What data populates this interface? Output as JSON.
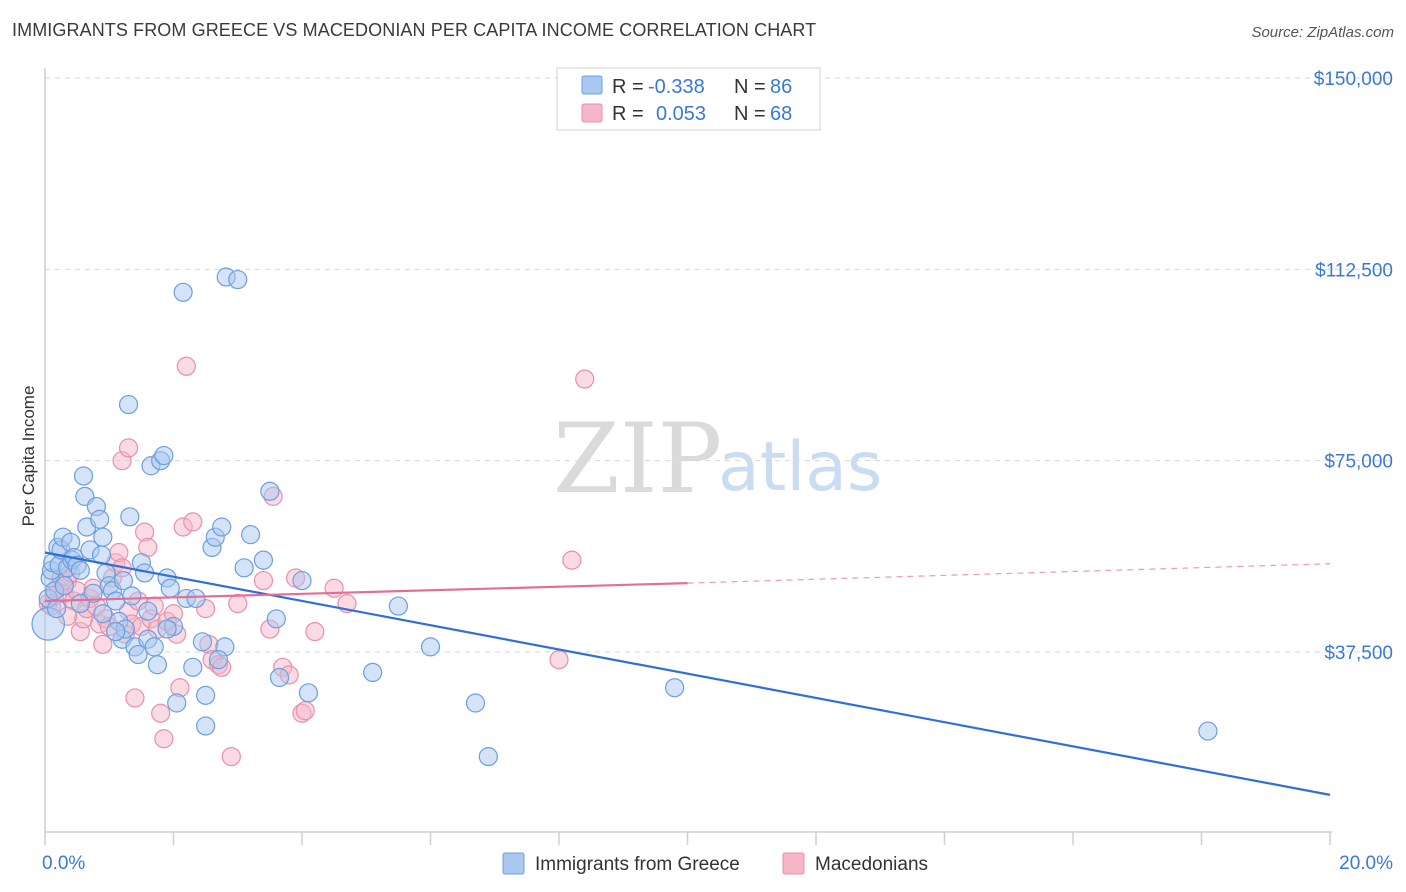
{
  "header": {
    "title": "IMMIGRANTS FROM GREECE VS MACEDONIAN PER CAPITA INCOME CORRELATION CHART",
    "source": "Source: ZipAtlas.com"
  },
  "watermark": {
    "zip": "ZIP",
    "atlas": "atlas"
  },
  "legend": {
    "r_label": "R =",
    "n_label": "N =",
    "rows": [
      {
        "r": "-0.338",
        "n": "86",
        "color": "#a9c8f0"
      },
      {
        "r": "0.053",
        "n": "68",
        "color": "#f5b6c8"
      }
    ]
  },
  "colors": {
    "blue_fill": "#a9c8f0",
    "blue_stroke": "#6b9fe0",
    "blue_line": "#2f6fd6",
    "pink_fill": "#f5b6c8",
    "pink_stroke": "#e88fab",
    "pink_line": "#e46f96",
    "tick_text": "#3a78d4",
    "grid": "#d7d7d7"
  },
  "chart_data": {
    "type": "scatter",
    "title": "IMMIGRANTS FROM GREECE VS MACEDONIAN PER CAPITA INCOME CORRELATION CHART",
    "xlabel": "",
    "ylabel": "Per Capita Income",
    "xlim": [
      0,
      20
    ],
    "ylim": [
      0,
      155000
    ],
    "x_tick_labels": [
      "0.0%",
      "20.0%"
    ],
    "y_ticks": [
      37500,
      75000,
      112500,
      150000
    ],
    "y_tick_labels": [
      "$37,500",
      "$75,000",
      "$112,500",
      "$150,000"
    ],
    "grid": true,
    "legend_position": "top-center",
    "series": [
      {
        "name": "Immigrants from Greece",
        "color": "#a9c8f0",
        "trend": {
          "x": [
            0,
            20
          ],
          "y": [
            57000,
            9500
          ]
        },
        "points": [
          [
            0.05,
            43000,
            1.8
          ],
          [
            0.05,
            48000,
            1
          ],
          [
            0.08,
            52000,
            1
          ],
          [
            0.1,
            53500,
            1
          ],
          [
            0.12,
            55000,
            1
          ],
          [
            0.15,
            49500,
            1
          ],
          [
            0.2,
            58000,
            1
          ],
          [
            0.22,
            54500,
            1
          ],
          [
            0.25,
            57500,
            1
          ],
          [
            0.28,
            60000,
            1
          ],
          [
            0.35,
            54000,
            1
          ],
          [
            0.4,
            59000,
            1
          ],
          [
            0.42,
            55500,
            1
          ],
          [
            0.45,
            56000,
            1
          ],
          [
            0.5,
            54500,
            1
          ],
          [
            0.55,
            53500,
            1
          ],
          [
            0.6,
            72000,
            1
          ],
          [
            0.62,
            68000,
            1
          ],
          [
            0.65,
            62000,
            1
          ],
          [
            0.7,
            57500,
            1
          ],
          [
            0.75,
            49000,
            1
          ],
          [
            0.8,
            66000,
            1
          ],
          [
            0.85,
            63500,
            1
          ],
          [
            0.88,
            56500,
            1
          ],
          [
            0.9,
            60000,
            1
          ],
          [
            0.95,
            53000,
            1
          ],
          [
            1.0,
            50500,
            1
          ],
          [
            1.05,
            49500,
            1
          ],
          [
            1.1,
            47500,
            1
          ],
          [
            1.15,
            43500,
            1
          ],
          [
            1.2,
            40000,
            1
          ],
          [
            1.22,
            51500,
            1
          ],
          [
            1.25,
            42000,
            1
          ],
          [
            1.3,
            86000,
            1
          ],
          [
            1.32,
            64000,
            1
          ],
          [
            1.35,
            48500,
            1
          ],
          [
            1.4,
            38500,
            1
          ],
          [
            1.45,
            37000,
            1
          ],
          [
            1.5,
            55000,
            1
          ],
          [
            1.55,
            53000,
            1
          ],
          [
            1.6,
            40000,
            1
          ],
          [
            1.65,
            74000,
            1
          ],
          [
            1.7,
            38500,
            1
          ],
          [
            1.75,
            35000,
            1
          ],
          [
            1.8,
            75000,
            1
          ],
          [
            1.85,
            76000,
            1
          ],
          [
            1.9,
            52000,
            1
          ],
          [
            1.95,
            50000,
            1
          ],
          [
            2.0,
            42500,
            1
          ],
          [
            2.05,
            27500,
            1
          ],
          [
            2.15,
            108000,
            1
          ],
          [
            2.2,
            48000,
            1
          ],
          [
            2.3,
            34500,
            1
          ],
          [
            2.35,
            48000,
            1
          ],
          [
            2.45,
            39500,
            1
          ],
          [
            2.5,
            29000,
            1
          ],
          [
            2.5,
            23000,
            1
          ],
          [
            2.6,
            58000,
            1
          ],
          [
            2.65,
            60000,
            1
          ],
          [
            2.75,
            62000,
            1
          ],
          [
            2.8,
            38500,
            1
          ],
          [
            2.82,
            111000,
            1
          ],
          [
            3.0,
            110500,
            1
          ],
          [
            3.1,
            54000,
            1
          ],
          [
            3.2,
            60500,
            1
          ],
          [
            3.4,
            55500,
            1
          ],
          [
            3.5,
            69000,
            1
          ],
          [
            3.6,
            44000,
            1
          ],
          [
            3.65,
            32500,
            1
          ],
          [
            4.0,
            51500,
            1
          ],
          [
            4.1,
            29500,
            1
          ],
          [
            5.1,
            33500,
            1
          ],
          [
            5.5,
            46500,
            1
          ],
          [
            6.0,
            38500,
            1
          ],
          [
            6.7,
            27500,
            1
          ],
          [
            6.9,
            17000,
            1
          ],
          [
            9.8,
            30500,
            1
          ],
          [
            18.1,
            22000,
            1
          ],
          [
            0.18,
            46000,
            1
          ],
          [
            0.3,
            50500,
            1
          ],
          [
            0.9,
            45000,
            1
          ],
          [
            1.1,
            41500,
            1
          ],
          [
            1.9,
            42000,
            1
          ],
          [
            2.7,
            36000,
            1
          ],
          [
            0.55,
            47000,
            1
          ],
          [
            1.6,
            45500,
            1
          ]
        ]
      },
      {
        "name": "Macedonians",
        "color": "#f5b6c8",
        "trend": {
          "x": [
            0,
            10
          ],
          "y": [
            47500,
            51000
          ]
        },
        "trend_dashed": {
          "x": [
            10,
            20
          ],
          "y": [
            51000,
            54800
          ]
        },
        "points": [
          [
            0.05,
            47000,
            1
          ],
          [
            0.1,
            46500,
            1
          ],
          [
            0.15,
            48500,
            1
          ],
          [
            0.2,
            50000,
            1
          ],
          [
            0.25,
            52000,
            1
          ],
          [
            0.3,
            49000,
            1
          ],
          [
            0.35,
            51500,
            1
          ],
          [
            0.4,
            53000,
            1
          ],
          [
            0.45,
            47500,
            1
          ],
          [
            0.5,
            49500,
            1
          ],
          [
            0.55,
            41500,
            1
          ],
          [
            0.6,
            44000,
            1
          ],
          [
            0.65,
            46000,
            1
          ],
          [
            0.7,
            48000,
            1
          ],
          [
            0.75,
            50000,
            1
          ],
          [
            0.8,
            46500,
            1
          ],
          [
            0.85,
            43000,
            1
          ],
          [
            0.9,
            39000,
            1
          ],
          [
            0.95,
            44000,
            1
          ],
          [
            1.0,
            42500,
            1
          ],
          [
            1.05,
            52000,
            1
          ],
          [
            1.1,
            55000,
            1
          ],
          [
            1.15,
            57000,
            1
          ],
          [
            1.2,
            54000,
            1
          ],
          [
            1.25,
            41000,
            1
          ],
          [
            1.3,
            45500,
            1
          ],
          [
            1.35,
            43000,
            1
          ],
          [
            1.4,
            28500,
            1
          ],
          [
            1.45,
            47500,
            1
          ],
          [
            1.5,
            42500,
            1
          ],
          [
            1.55,
            61000,
            1
          ],
          [
            1.6,
            58000,
            1
          ],
          [
            1.65,
            44000,
            1
          ],
          [
            1.7,
            46500,
            1
          ],
          [
            1.75,
            42000,
            1
          ],
          [
            1.8,
            25500,
            1
          ],
          [
            1.85,
            20500,
            1
          ],
          [
            1.9,
            43500,
            1
          ],
          [
            2.0,
            45000,
            1
          ],
          [
            2.05,
            41000,
            1
          ],
          [
            2.1,
            30500,
            1
          ],
          [
            2.15,
            62000,
            1
          ],
          [
            2.2,
            93500,
            1
          ],
          [
            2.3,
            63000,
            1
          ],
          [
            2.5,
            46000,
            1
          ],
          [
            2.55,
            39000,
            1
          ],
          [
            2.6,
            36000,
            1
          ],
          [
            2.7,
            35000,
            1
          ],
          [
            2.75,
            34500,
            1
          ],
          [
            2.9,
            17000,
            1
          ],
          [
            3.0,
            47000,
            1
          ],
          [
            3.4,
            51500,
            1
          ],
          [
            3.5,
            42000,
            1
          ],
          [
            3.55,
            68000,
            1
          ],
          [
            3.7,
            34500,
            1
          ],
          [
            3.8,
            33000,
            1
          ],
          [
            3.9,
            52000,
            1
          ],
          [
            4.0,
            25500,
            1
          ],
          [
            4.05,
            26000,
            1
          ],
          [
            4.2,
            41500,
            1
          ],
          [
            4.5,
            50000,
            1
          ],
          [
            4.7,
            47000,
            1
          ],
          [
            8.0,
            36000,
            1
          ],
          [
            8.2,
            55500,
            1
          ],
          [
            8.4,
            91000,
            1
          ],
          [
            1.2,
            75000,
            1
          ],
          [
            1.3,
            77500,
            1
          ],
          [
            0.35,
            44500,
            1
          ]
        ]
      }
    ]
  },
  "bottom_legend": [
    {
      "label": "Immigrants from Greece",
      "color": "#a9c8f0"
    },
    {
      "label": "Macedonians",
      "color": "#f5b6c8"
    }
  ]
}
